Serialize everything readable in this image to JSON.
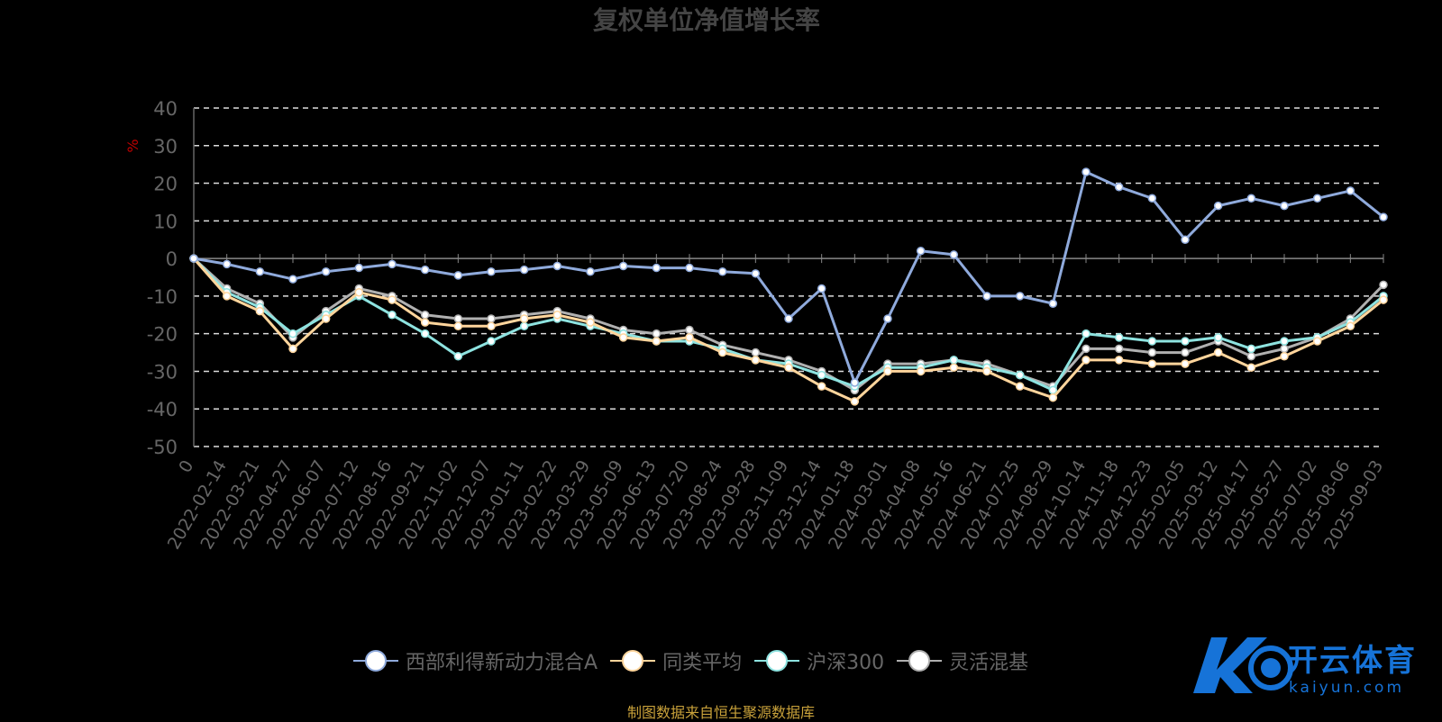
{
  "chart_data": {
    "type": "line",
    "title": "复权单位净值增长率",
    "ylabel": "%",
    "ylim": [
      -50,
      40
    ],
    "yticks": [
      40,
      30,
      20,
      10,
      0,
      -10,
      -20,
      -30,
      -40,
      -50
    ],
    "grid": true,
    "legend_position": "bottom",
    "categories": [
      "0",
      "2022-02-14",
      "2022-03-21",
      "2022-04-27",
      "2022-06-07",
      "2022-07-12",
      "2022-08-16",
      "2022-09-21",
      "2022-11-02",
      "2022-12-07",
      "2023-01-11",
      "2023-02-22",
      "2023-03-29",
      "2023-05-09",
      "2023-06-13",
      "2023-07-20",
      "2023-08-24",
      "2023-09-28",
      "2023-11-09",
      "2023-12-14",
      "2024-01-18",
      "2024-03-01",
      "2024-04-08",
      "2024-05-16",
      "2024-06-21",
      "2024-07-25",
      "2024-08-29",
      "2024-10-14",
      "2024-11-18",
      "2024-12-23",
      "2025-02-05",
      "2025-03-12",
      "2025-04-17",
      "2025-05-27",
      "2025-07-02",
      "2025-08-06",
      "2025-09-03"
    ],
    "series": [
      {
        "name": "西部利得新动力混合A",
        "color": "#8faadc",
        "values": [
          0,
          -1.5,
          -3.5,
          -5.5,
          -3.5,
          -2.5,
          -1.5,
          -3,
          -4.5,
          -3.5,
          -3,
          -2,
          -3.5,
          -2,
          -2.5,
          -2.5,
          -3.5,
          -4,
          -16,
          -8,
          -33,
          -16,
          2,
          1,
          -10,
          -10,
          -12,
          23,
          19,
          16,
          5,
          14,
          16,
          14,
          16,
          18,
          11
        ]
      },
      {
        "name": "同类平均",
        "color": "#ffd59c",
        "values": [
          0,
          -10,
          -14,
          -24,
          -16,
          -9,
          -11,
          -17,
          -18,
          -18,
          -16,
          -15,
          -17,
          -21,
          -22,
          -21,
          -25,
          -27,
          -29,
          -34,
          -38,
          -30,
          -30,
          -29,
          -30,
          -34,
          -37,
          -27,
          -27,
          -28,
          -28,
          -25,
          -29,
          -26,
          -22,
          -18,
          -11
        ]
      },
      {
        "name": "沪深300",
        "color": "#8ee3e0",
        "values": [
          0,
          -9,
          -13,
          -20,
          -15,
          -10,
          -15,
          -20,
          -26,
          -22,
          -18,
          -16,
          -18,
          -20,
          -22,
          -22,
          -24,
          -27,
          -28,
          -31,
          -34,
          -29,
          -29,
          -27,
          -29,
          -31,
          -35,
          -20,
          -21,
          -22,
          -22,
          -21,
          -24,
          -22,
          -21,
          -17,
          -10
        ]
      },
      {
        "name": "灵活混基",
        "color": "#b0b0b0",
        "values": [
          0,
          -8,
          -12,
          -21,
          -14,
          -8,
          -10,
          -15,
          -16,
          -16,
          -15,
          -14,
          -16,
          -19,
          -20,
          -19,
          -23,
          -25,
          -27,
          -30,
          -35,
          -28,
          -28,
          -27,
          -28,
          -31,
          -34,
          -24,
          -24,
          -25,
          -25,
          -22,
          -26,
          -24,
          -21,
          -16,
          -7
        ]
      }
    ]
  },
  "legend": {
    "items": [
      {
        "label": "西部利得新动力混合A",
        "color": "#8faadc"
      },
      {
        "label": "同类平均",
        "color": "#ffd59c"
      },
      {
        "label": "沪深300",
        "color": "#8ee3e0"
      },
      {
        "label": "灵活混基",
        "color": "#b0b0b0"
      }
    ]
  },
  "source_text": "制图数据来自恒生聚源数据库",
  "logo": {
    "main": "开云体育",
    "sub": "kaiyun.com"
  }
}
